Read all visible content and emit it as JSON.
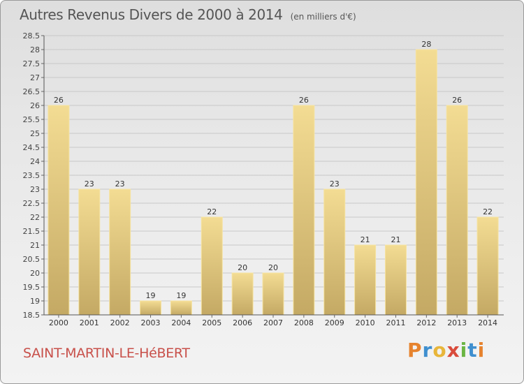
{
  "chart_data": {
    "type": "bar",
    "title": "Autres Revenus Divers de 2000 à 2014",
    "subtitle": "(en milliers d'€)",
    "categories": [
      "2000",
      "2001",
      "2002",
      "2003",
      "2004",
      "2005",
      "2006",
      "2007",
      "2008",
      "2009",
      "2010",
      "2011",
      "2012",
      "2013",
      "2014"
    ],
    "values": [
      26,
      23,
      23,
      19,
      19,
      22,
      20,
      20,
      26,
      23,
      21,
      21,
      28,
      26,
      22
    ],
    "ylim": [
      18.5,
      28.5
    ],
    "yticks": [
      "18.5",
      "19",
      "19.5",
      "20",
      "20.5",
      "21",
      "21.5",
      "22",
      "22.5",
      "23",
      "23.5",
      "24",
      "24.5",
      "25",
      "25.5",
      "26",
      "26.5",
      "27",
      "27.5",
      "28",
      "28.5"
    ],
    "grid": true,
    "bar_color": "#e8cf86"
  },
  "footer": {
    "commune": "SAINT-MARTIN-LE-HéBERT",
    "brand_letters": [
      "P",
      "r",
      "o",
      "x",
      "i",
      "t",
      "i"
    ],
    "brand_colors": [
      "#e6832e",
      "#3f8fcf",
      "#e8b63a",
      "#d94b3b",
      "#6bb543",
      "#3f8fcf",
      "#e6832e"
    ]
  }
}
